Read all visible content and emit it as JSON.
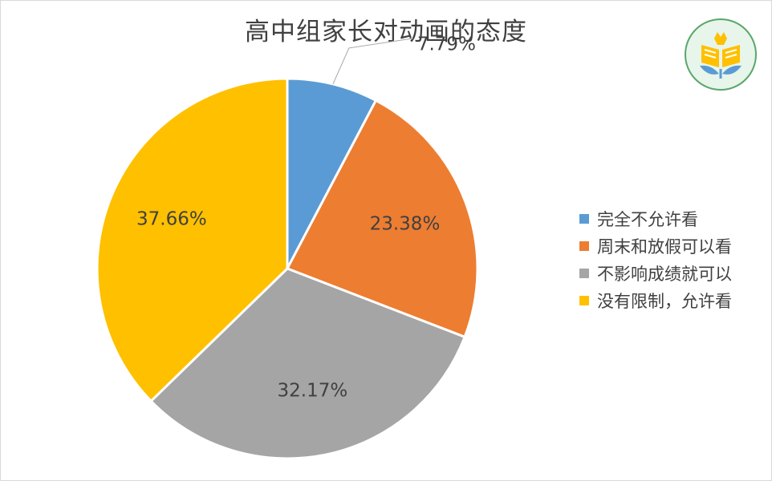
{
  "chart_data": {
    "type": "pie",
    "title": "高中组家长对动画的态度",
    "categories": [
      "完全不允许看",
      "周末和放假可以看",
      "不影响成绩就可以",
      "没有限制，允许看"
    ],
    "values": [
      7.79,
      23.38,
      32.17,
      37.66
    ],
    "data_labels": [
      "7.79%",
      "23.38%",
      "32.17%",
      "37.66%"
    ],
    "colors": [
      "#5B9BD5",
      "#ED7D31",
      "#A5A5A5",
      "#FFC000"
    ],
    "start_angle": "12 o'clock",
    "direction": "clockwise",
    "legend_position": "right"
  },
  "logo": {
    "icon": "tulip-book-icon",
    "colors": [
      "#FFC000",
      "#5B9BD5",
      "#e7f5ea"
    ]
  }
}
